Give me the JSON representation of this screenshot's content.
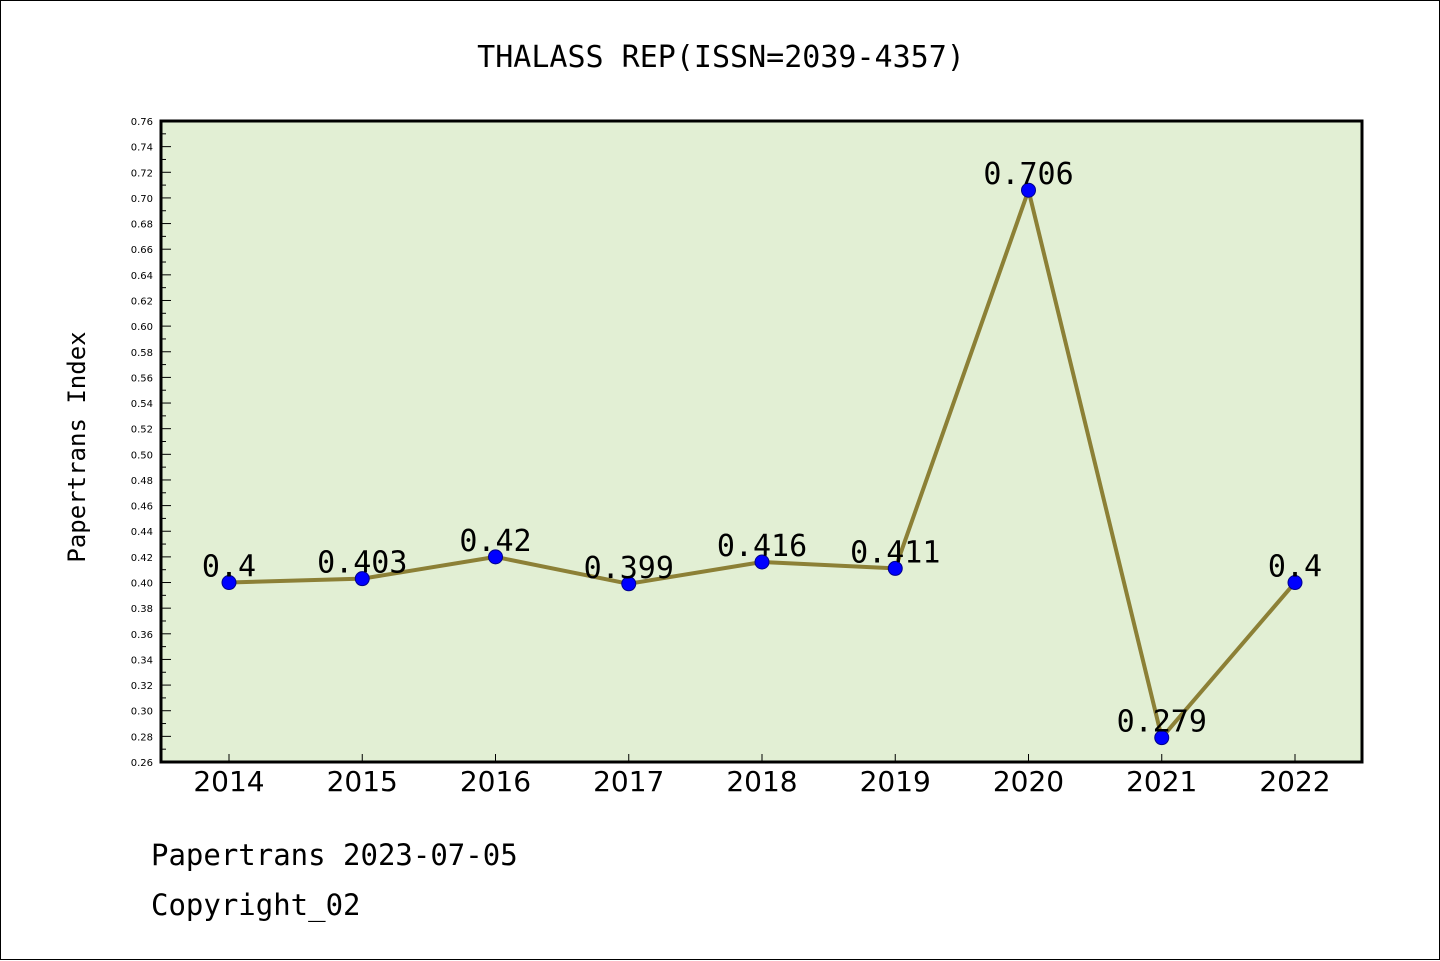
{
  "chart_data": {
    "type": "line",
    "title": "THALASS REP(ISSN=2039-4357)",
    "ylabel": "Papertrans Index",
    "xlabel": "",
    "categories": [
      "2014",
      "2015",
      "2016",
      "2017",
      "2018",
      "2019",
      "2020",
      "2021",
      "2022"
    ],
    "series": [
      {
        "values": [
          0.4,
          0.403,
          0.42,
          0.399,
          0.416,
          0.411,
          0.706,
          0.279,
          0.4
        ],
        "labels": [
          "0.4",
          "0.403",
          "0.42",
          "0.399",
          "0.416",
          "0.411",
          "0.706",
          "0.279",
          "0.4"
        ]
      }
    ],
    "ylim": [
      0.26,
      0.76
    ],
    "ytick_step": 0.02,
    "grid": false,
    "legend": "none",
    "colors": {
      "plot_background": "#e2efd4",
      "line": "#8c8036",
      "marker": "#0000ff",
      "marker_edge": "#00008b"
    }
  },
  "footer": {
    "line1": "Papertrans 2023-07-05",
    "line2": "Copyright_02"
  }
}
